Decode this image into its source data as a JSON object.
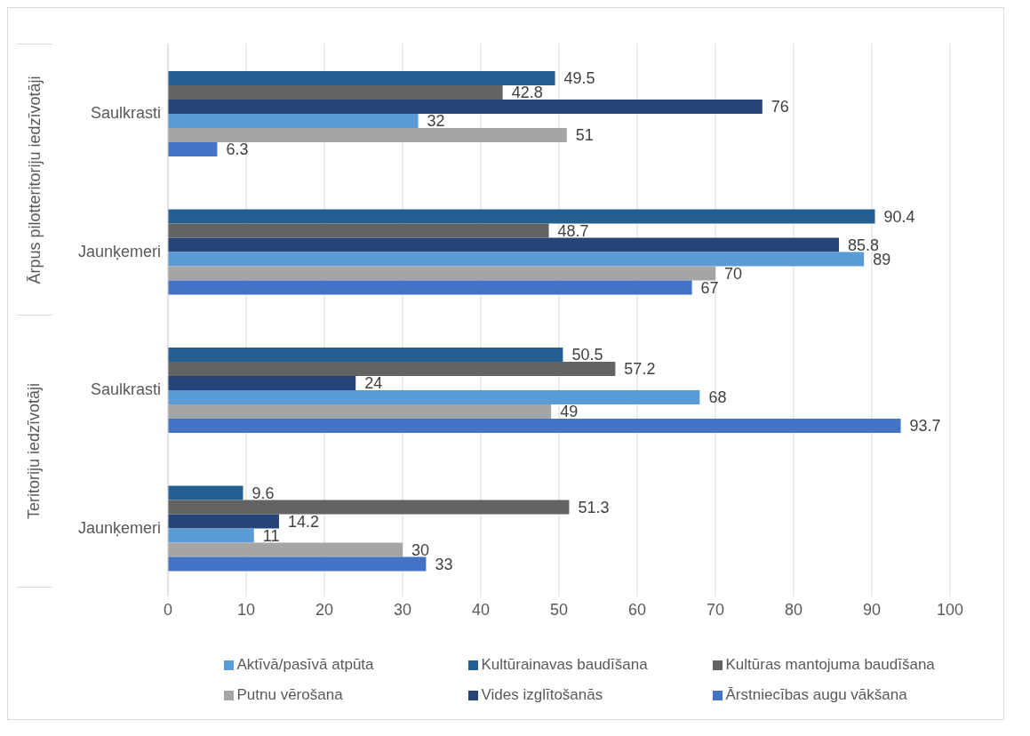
{
  "chart_data": {
    "type": "bar",
    "orientation": "horizontal",
    "categories": [
      "Saulkrasti",
      "Jaunķemeri",
      "Saulkrasti",
      "Jaunķemeri"
    ],
    "series": [
      {
        "name": "Kultūrainavas baudīšana",
        "color": "#255e91",
        "values": [
          49.5,
          90.4,
          50.5,
          9.6
        ]
      },
      {
        "name": "Kultūras mantojuma baudīšana",
        "color": "#636363",
        "values": [
          42.8,
          48.7,
          57.2,
          51.3
        ]
      },
      {
        "name": "Vides izglītošanās",
        "color": "#264478",
        "values": [
          76,
          85.8,
          24,
          14.2
        ]
      },
      {
        "name": "Aktīvā/pasīvā atpūta",
        "color": "#5b9bd5",
        "values": [
          32,
          89,
          68,
          11
        ]
      },
      {
        "name": "Putnu vērošana",
        "color": "#a5a5a5",
        "values": [
          51,
          70,
          49,
          30
        ]
      },
      {
        "name": "Ārstniecības augu vākšana",
        "color": "#4472c4",
        "values": [
          6.3,
          67,
          93.7,
          33
        ]
      }
    ],
    "annotations": [
      "Ārpus pilotteritoriju iedzīvotāji",
      "Teritoriju iedzīvotāji"
    ],
    "xlim": [
      0,
      100
    ],
    "xticks": [
      0,
      10,
      20,
      30,
      40,
      50,
      60,
      70,
      80,
      90,
      100
    ],
    "grid": "x",
    "legend": "bottom",
    "data_labels": true
  }
}
